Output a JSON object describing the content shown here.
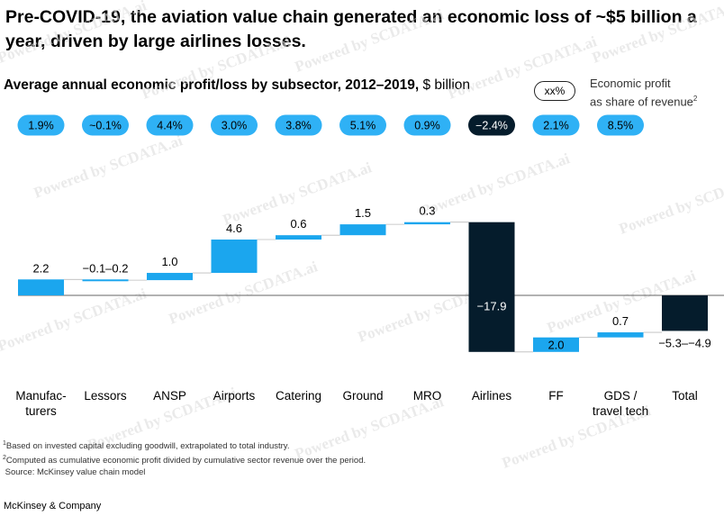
{
  "title": "Pre-COVID-19, the aviation value chain generated an economic loss of ~$5 billion a year, driven by large airlines losses.",
  "subtitle": "Average annual economic profit/loss by subsector, 2012–2019,",
  "subtitle_unit": "$ billion",
  "legend": {
    "pill_label": "xx%",
    "line1": "Economic profit",
    "line2": "as share of revenue",
    "line2_sup": "2"
  },
  "chart_data": {
    "type": "waterfall",
    "colors": {
      "sector": "#1ba6ee",
      "airlines": "#051c2c",
      "total": "#051c2c",
      "pill": "#2fb1f5",
      "pill_dark": "#051c2c"
    },
    "categories": [
      "Manufac-\nturers",
      "Lessors",
      "ANSP",
      "Airports",
      "Catering",
      "Ground",
      "MRO",
      "Airlines",
      "FF",
      "GDS /\ntravel tech",
      "Total"
    ],
    "values": [
      2.2,
      -0.1,
      1.0,
      4.6,
      0.6,
      1.5,
      0.3,
      -17.9,
      2.0,
      0.7,
      -4.9
    ],
    "value_labels": [
      "2.2",
      "−0.1–0.2",
      "1.0",
      "4.6",
      "0.6",
      "1.5",
      "0.3",
      "−17.9",
      "2.0",
      "0.7",
      "−5.3–−4.9"
    ],
    "margin_labels": [
      "1.9%",
      "~0.1%",
      "4.4%",
      "3.0%",
      "3.8%",
      "5.1%",
      "0.9%",
      "−2.4%",
      "2.1%",
      "8.5%",
      ""
    ],
    "ylim": [
      -9.5,
      12.4
    ]
  },
  "footnotes": [
    {
      "sup": "1",
      "text": "Based on invested capital excluding goodwill, extrapolated to total industry."
    },
    {
      "sup": "2",
      "text": "Computed as cumulative economic profit divided by cumulative sector revenue over the period."
    },
    {
      "sup": "",
      "text": "Source: McKinsey value chain model"
    }
  ],
  "brand": "McKinsey & Company",
  "watermark": "Powered by SCDATA.ai"
}
